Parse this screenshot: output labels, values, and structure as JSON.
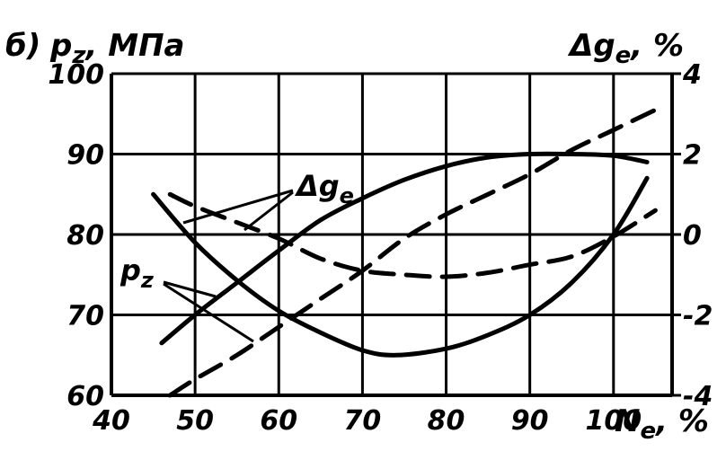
{
  "chart_data": {
    "type": "line",
    "panel_label": "б)",
    "left_axis": {
      "symbol": "p",
      "subscript": "z",
      "unit": ", МПа",
      "ticks": [
        "60",
        "70",
        "80",
        "90",
        "100"
      ],
      "ylim": [
        60,
        100
      ]
    },
    "right_axis": {
      "symbol": "Δg",
      "subscript": "e",
      "unit": ", %",
      "ticks": [
        "-4",
        "-2",
        "0",
        "2",
        "4"
      ],
      "ylim": [
        -4,
        4
      ]
    },
    "x_axis": {
      "symbol": "N",
      "subscript": "e",
      "unit": ", %",
      "ticks": [
        "40",
        "50",
        "60",
        "70",
        "80",
        "90",
        "100"
      ],
      "xlim": [
        40,
        107
      ]
    },
    "grid": true,
    "annotations": [
      {
        "symbol": "Δg",
        "subscript": "e"
      },
      {
        "symbol": "p",
        "subscript": "z"
      }
    ],
    "series": [
      {
        "axis": "left",
        "style": "solid",
        "x": [
          46,
          50,
          55,
          60,
          65,
          70,
          75,
          80,
          85,
          90,
          95,
          100,
          104
        ],
        "y": [
          66.5,
          70.0,
          74.0,
          78.0,
          81.8,
          84.5,
          86.8,
          88.5,
          89.6,
          90.0,
          90.0,
          89.8,
          89.0
        ]
      },
      {
        "axis": "left",
        "style": "solid",
        "x": [
          45,
          50,
          55,
          60,
          65,
          70,
          74,
          80,
          85,
          90,
          95,
          100,
          104
        ],
        "y": [
          85.0,
          79.0,
          74.3,
          70.5,
          67.8,
          65.6,
          65.0,
          65.8,
          67.5,
          70.0,
          74.0,
          80.0,
          87.0
        ]
      },
      {
        "axis": "right",
        "style": "dashed",
        "x": [
          47,
          50,
          55,
          60,
          65,
          70,
          75,
          80,
          85,
          90,
          95,
          100,
          105
        ],
        "y": [
          -4.0,
          -3.6,
          -3.0,
          -2.3,
          -1.6,
          -0.9,
          -0.1,
          0.5,
          1.0,
          1.5,
          2.1,
          2.6,
          3.1
        ]
      },
      {
        "axis": "right",
        "style": "dashed",
        "x": [
          47,
          50,
          55,
          60,
          65,
          70,
          75,
          80,
          85,
          90,
          95,
          100,
          105
        ],
        "y": [
          1.0,
          0.7,
          0.3,
          -0.1,
          -0.6,
          -0.9,
          -1.0,
          -1.05,
          -0.95,
          -0.75,
          -0.55,
          -0.05,
          0.6
        ]
      }
    ]
  }
}
